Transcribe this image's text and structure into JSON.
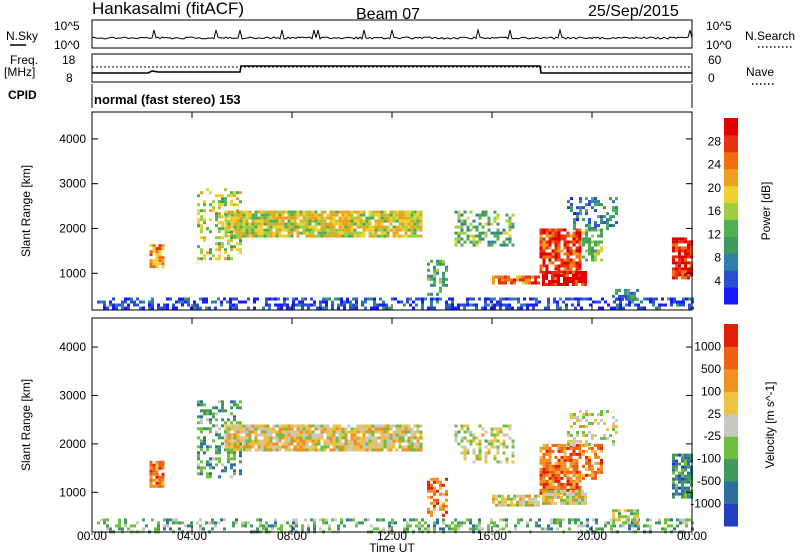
{
  "header": {
    "station": "Hankasalmi (fitACF)",
    "beam": "Beam 07",
    "date": "25/Sep/2015"
  },
  "strips": {
    "nsky": {
      "label": "N.Sky",
      "tick_top": "10^5",
      "tick_bottom": "10^0"
    },
    "nsearch": {
      "label": "N.Search",
      "tick_top": "10^5",
      "tick_bottom": "10^0"
    },
    "freq": {
      "label_line1": "Freq.",
      "label_line2": "[MHz]",
      "tick_top": "18",
      "tick_bottom": "8"
    },
    "nave": {
      "label": "Nave",
      "tick_top": "60",
      "tick_bottom": "0"
    },
    "cpid": {
      "label": "CPID",
      "value": "normal (fast stereo) 153"
    }
  },
  "chart_data": [
    {
      "type": "heatmap",
      "name": "power",
      "ylabel": "Slant Range [km]",
      "ylim": [
        180,
        4600
      ],
      "yticks": [
        "1000",
        "2000",
        "3000",
        "4000"
      ],
      "xlim": [
        0,
        24
      ],
      "colorbar": {
        "label": "Power [dB]",
        "ticks": [
          "4",
          "8",
          "12",
          "16",
          "20",
          "24",
          "28"
        ],
        "colors": [
          "#1a1aff",
          "#2a4fd0",
          "#2f7fa8",
          "#3f9a5c",
          "#4fb04f",
          "#9fcf3f",
          "#f0d030",
          "#f0a020",
          "#f07010",
          "#e83010",
          "#e00000"
        ]
      },
      "regions": [
        {
          "t0": 0.2,
          "t1": 24,
          "r0": 200,
          "r1": 460,
          "v": 0.12,
          "density": 0.5
        },
        {
          "t0": 2.3,
          "t1": 2.9,
          "r0": 1150,
          "r1": 1650,
          "v": 0.72,
          "density": 0.85
        },
        {
          "t0": 4.2,
          "t1": 5.9,
          "r0": 1300,
          "r1": 2900,
          "v": 0.5,
          "density": 0.35
        },
        {
          "t0": 5.3,
          "t1": 13.2,
          "r0": 1850,
          "r1": 2400,
          "v": 0.55,
          "density": 0.9
        },
        {
          "t0": 13.4,
          "t1": 14.2,
          "r0": 500,
          "r1": 1300,
          "v": 0.35,
          "density": 0.5
        },
        {
          "t0": 14.5,
          "t1": 16.8,
          "r0": 1600,
          "r1": 2400,
          "v": 0.4,
          "density": 0.45
        },
        {
          "t0": 16.0,
          "t1": 17.9,
          "r0": 750,
          "r1": 950,
          "v": 0.75,
          "density": 0.9
        },
        {
          "t0": 17.9,
          "t1": 19.5,
          "r0": 1000,
          "r1": 2000,
          "v": 0.85,
          "density": 0.8
        },
        {
          "t0": 18.0,
          "t1": 19.8,
          "r0": 750,
          "r1": 1050,
          "v": 0.95,
          "density": 0.85
        },
        {
          "t0": 19.0,
          "t1": 21.0,
          "r0": 2000,
          "r1": 2700,
          "v": 0.25,
          "density": 0.35
        },
        {
          "t0": 19.6,
          "t1": 20.4,
          "r0": 1300,
          "r1": 2000,
          "v": 0.45,
          "density": 0.6
        },
        {
          "t0": 20.8,
          "t1": 21.8,
          "r0": 400,
          "r1": 650,
          "v": 0.3,
          "density": 0.6
        },
        {
          "t0": 23.2,
          "t1": 24,
          "r0": 900,
          "r1": 1800,
          "v": 0.9,
          "density": 0.85
        }
      ]
    },
    {
      "type": "heatmap",
      "name": "velocity",
      "ylabel": "Slant Range [km]",
      "ylim": [
        180,
        4600
      ],
      "yticks": [
        "1000",
        "2000",
        "3000",
        "4000"
      ],
      "xlim": [
        0,
        24
      ],
      "xticks": [
        "00:00",
        "04:00",
        "08:00",
        "12:00",
        "16:00",
        "20:00",
        "00:00"
      ],
      "xlabel": "Time UT",
      "colorbar": {
        "label": "Velocity [m s^-1]",
        "ticks": [
          "1000",
          "500",
          "100",
          "25",
          "-25",
          "-100",
          "-500",
          "-1000"
        ],
        "colors": [
          "#2040c0",
          "#2f6fa0",
          "#3f9a5c",
          "#6fbf3f",
          "#c8c8c0",
          "#f0c040",
          "#f09020",
          "#f06010",
          "#e02000"
        ]
      },
      "regions": [
        {
          "t0": 0.2,
          "t1": 24,
          "r0": 200,
          "r1": 460,
          "v": 0.35,
          "density": 0.4
        },
        {
          "t0": 2.3,
          "t1": 2.9,
          "r0": 1150,
          "r1": 1650,
          "v": 0.78,
          "density": 0.85
        },
        {
          "t0": 4.2,
          "t1": 5.9,
          "r0": 1300,
          "r1": 2900,
          "v": 0.3,
          "density": 0.35
        },
        {
          "t0": 5.3,
          "t1": 13.2,
          "r0": 1850,
          "r1": 2400,
          "v": 0.55,
          "density": 0.9
        },
        {
          "t0": 13.4,
          "t1": 14.2,
          "r0": 500,
          "r1": 1300,
          "v": 0.8,
          "density": 0.5
        },
        {
          "t0": 14.5,
          "t1": 16.8,
          "r0": 1600,
          "r1": 2400,
          "v": 0.5,
          "density": 0.45
        },
        {
          "t0": 16.0,
          "t1": 17.9,
          "r0": 750,
          "r1": 950,
          "v": 0.55,
          "density": 0.9
        },
        {
          "t0": 17.9,
          "t1": 19.5,
          "r0": 1000,
          "r1": 2000,
          "v": 0.8,
          "density": 0.8
        },
        {
          "t0": 18.0,
          "t1": 19.8,
          "r0": 750,
          "r1": 1050,
          "v": 0.55,
          "density": 0.85
        },
        {
          "t0": 19.0,
          "t1": 21.0,
          "r0": 2000,
          "r1": 2700,
          "v": 0.5,
          "density": 0.35
        },
        {
          "t0": 19.6,
          "t1": 20.4,
          "r0": 1300,
          "r1": 2000,
          "v": 0.75,
          "density": 0.6
        },
        {
          "t0": 20.8,
          "t1": 21.8,
          "r0": 400,
          "r1": 650,
          "v": 0.5,
          "density": 0.6
        },
        {
          "t0": 23.2,
          "t1": 24,
          "r0": 900,
          "r1": 1800,
          "v": 0.25,
          "density": 0.85
        }
      ]
    }
  ]
}
